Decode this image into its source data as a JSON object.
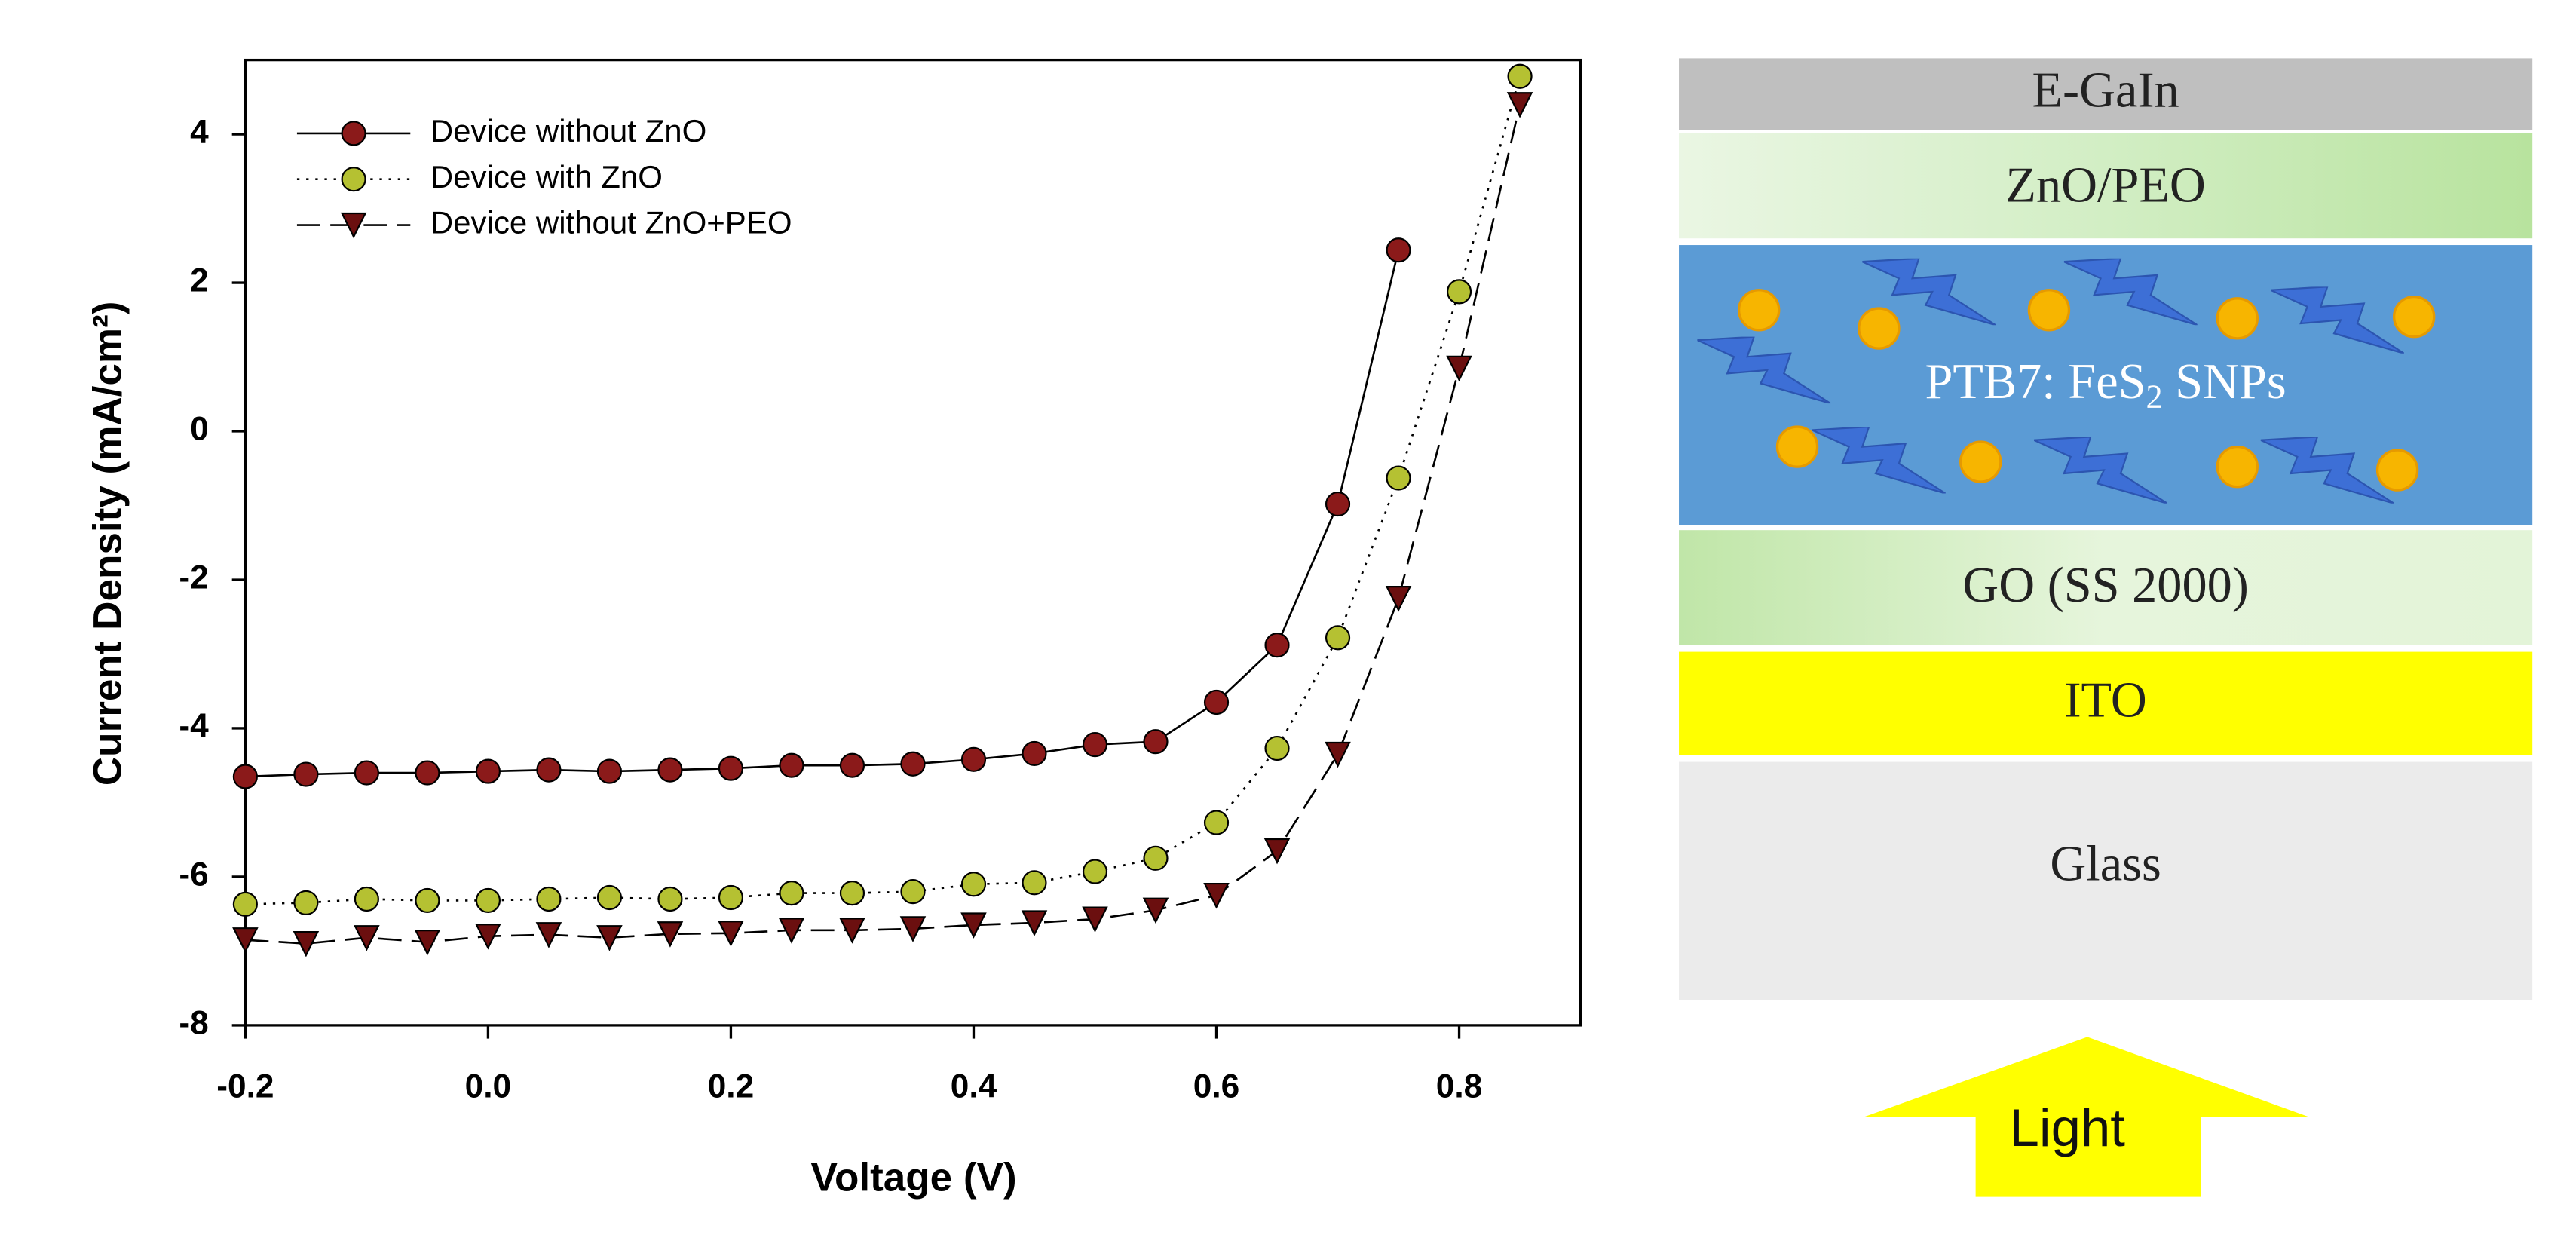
{
  "chart_data": {
    "type": "line",
    "x_label": "Voltage (V)",
    "y_label": "Current Density (mA/cm²)",
    "x": [
      -0.2,
      -0.15,
      -0.1,
      -0.05,
      0,
      0.05,
      0.1,
      0.15,
      0.2,
      0.25,
      0.3,
      0.35,
      0.4,
      0.45,
      0.5,
      0.55,
      0.6,
      0.65,
      0.7,
      0.75,
      0.8,
      0.85
    ],
    "series": [
      {
        "name": "Device without ZnO",
        "color": "#8b1a1a",
        "marker": "circle",
        "linestyle": "solid",
        "values": [
          -4.65,
          -4.62,
          -4.6,
          -4.6,
          -4.58,
          -4.56,
          -4.58,
          -4.56,
          -4.54,
          -4.5,
          -4.5,
          -4.48,
          -4.42,
          -4.34,
          -4.22,
          -4.18,
          -3.65,
          -2.88,
          -0.98,
          2.44,
          null,
          null
        ]
      },
      {
        "name": "Device with ZnO",
        "color": "#b5c132",
        "marker": "circle",
        "linestyle": "dotted",
        "values": [
          -6.37,
          -6.35,
          -6.3,
          -6.32,
          -6.32,
          -6.3,
          -6.28,
          -6.3,
          -6.28,
          -6.22,
          -6.22,
          -6.2,
          -6.1,
          -6.08,
          -5.93,
          -5.75,
          -5.27,
          -4.27,
          -2.78,
          -0.63,
          1.88,
          4.78
        ]
      },
      {
        "name": "Device without ZnO+PEO",
        "color": "#6b0f0f",
        "marker": "triangle-down",
        "linestyle": "dashed",
        "values": [
          -6.85,
          -6.9,
          -6.82,
          -6.88,
          -6.8,
          -6.78,
          -6.82,
          -6.77,
          -6.76,
          -6.72,
          -6.72,
          -6.7,
          -6.65,
          -6.62,
          -6.57,
          -6.45,
          -6.25,
          -5.65,
          -4.35,
          -2.25,
          0.85,
          4.4
        ]
      }
    ],
    "xlim": [
      -0.2,
      0.9
    ],
    "ylim": [
      -8,
      5
    ],
    "xticks": [
      -0.2,
      {
        "value": 0,
        "label": "0.0"
      },
      0.2,
      0.4,
      0.6,
      0.8
    ],
    "yticks": [
      -8,
      -6,
      -4,
      -2,
      0,
      2,
      4
    ],
    "legend": "upper left"
  },
  "diagram": {
    "layers": [
      "E-GaIn",
      "ZnO/PEO",
      [
        "PTB7: FeS",
        "2",
        " SNPs"
      ],
      "GO (SS 2000)",
      "ITO",
      "Glass"
    ],
    "light_label": "Light"
  }
}
